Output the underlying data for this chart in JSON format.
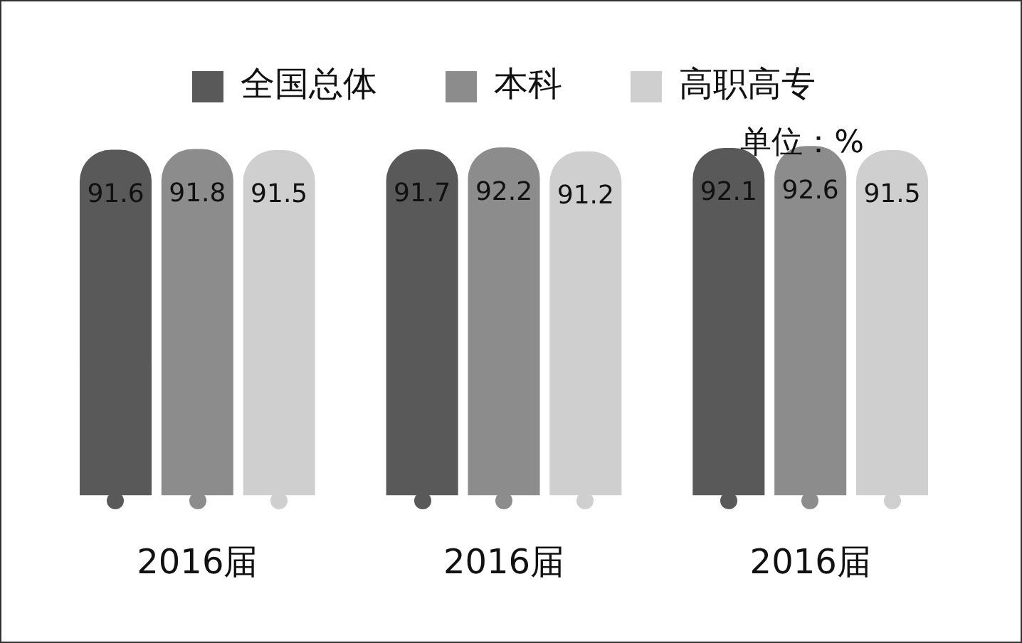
{
  "chart_data": {
    "type": "bar",
    "categories": [
      "2016届",
      "2016届",
      "2016届"
    ],
    "series": [
      {
        "name": "全国总体",
        "color": "#595959",
        "values": [
          91.6,
          91.7,
          92.1
        ]
      },
      {
        "name": "本科",
        "color": "#8c8c8c",
        "values": [
          91.8,
          92.2,
          92.6
        ]
      },
      {
        "name": "高职高专",
        "color": "#cfcfcf",
        "values": [
          91.5,
          91.2,
          91.5
        ]
      }
    ],
    "annotations": [
      "单位：%"
    ],
    "data_labels": true,
    "legend": "top",
    "grid": false
  }
}
